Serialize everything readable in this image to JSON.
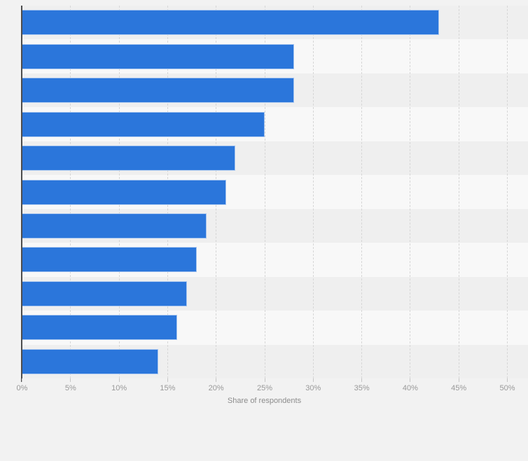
{
  "chart_data": {
    "type": "bar",
    "orientation": "horizontal",
    "title": "",
    "xlabel": "Share of respondents",
    "ylabel": "",
    "categories": null,
    "categories_visible": false,
    "values": [
      43,
      28,
      28,
      25,
      22,
      21,
      19,
      18,
      17,
      16,
      14
    ],
    "value_unit": "%",
    "x_ticks": [
      "0%",
      "5%",
      "10%",
      "15%",
      "20%",
      "25%",
      "30%",
      "35%",
      "40%",
      "45%",
      "50%"
    ],
    "x_tick_values": [
      0,
      5,
      10,
      15,
      20,
      25,
      30,
      35,
      40,
      45,
      50
    ],
    "xlim": [
      0,
      50
    ],
    "grid": "vertical-dashed",
    "legend": "none",
    "colors": {
      "bar_fill": "#2b76db",
      "bar_border": "#a8c6ef",
      "background": "#f2f2f2",
      "band_dark": "#efefef",
      "band_light": "#f8f8f8",
      "gridline": "#d7d7d7",
      "axis_line": "#4d4d4d",
      "tick_text": "#999999",
      "axis_title_text": "#8c8c8c"
    }
  }
}
